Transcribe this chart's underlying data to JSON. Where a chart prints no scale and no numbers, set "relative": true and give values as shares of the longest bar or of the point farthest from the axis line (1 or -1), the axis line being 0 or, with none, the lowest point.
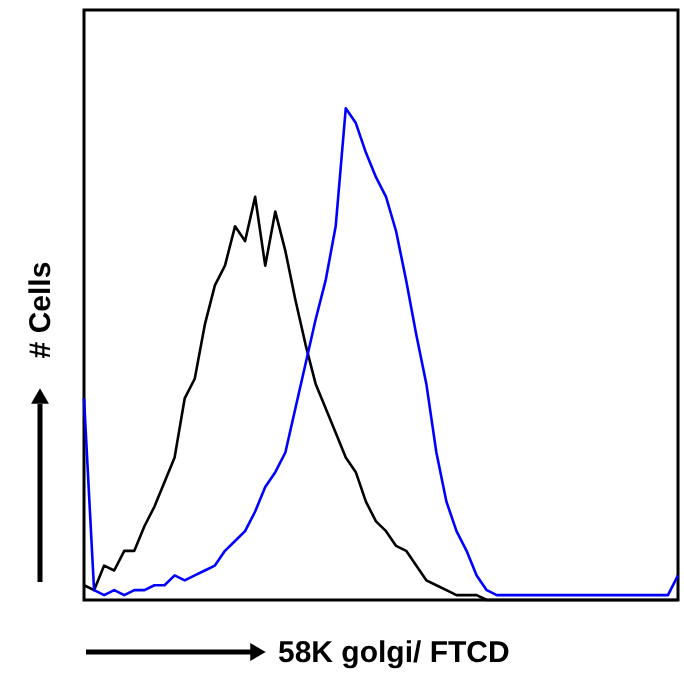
{
  "chart_data": {
    "type": "line",
    "relative": true,
    "xlabel": "58K golgi/ FTCD",
    "ylabel": "# Cells",
    "categories": [
      null,
      null,
      null,
      null,
      null,
      null,
      null,
      null,
      null,
      null,
      null,
      null,
      null,
      null,
      null,
      null,
      null,
      null,
      null,
      null,
      null,
      null,
      null,
      null,
      null,
      null,
      null,
      null,
      null,
      null,
      null,
      null,
      null,
      null,
      null,
      null,
      null,
      null,
      null,
      null,
      null,
      null,
      null,
      null,
      null,
      null,
      null,
      null,
      null,
      null,
      null,
      null,
      null,
      null,
      null,
      null,
      null,
      null,
      null,
      null
    ],
    "series": [
      {
        "color": "#000000",
        "values": [
          0.03,
          0.02,
          0.07,
          0.06,
          0.1,
          0.1,
          0.15,
          0.19,
          0.24,
          0.29,
          0.41,
          0.45,
          0.56,
          0.64,
          0.68,
          0.76,
          0.73,
          0.82,
          0.68,
          0.79,
          0.71,
          0.61,
          0.52,
          0.44,
          0.39,
          0.34,
          0.29,
          0.26,
          0.2,
          0.16,
          0.14,
          0.11,
          0.1,
          0.07,
          0.04,
          0.03,
          0.02,
          0.01,
          0.01,
          0.01,
          0,
          0,
          0,
          0,
          0,
          0,
          0,
          0,
          0,
          0,
          0,
          0,
          0,
          0,
          0,
          0,
          0,
          0,
          0,
          0
        ]
      },
      {
        "color": "#0000ff",
        "values": [
          0.41,
          0.02,
          0.01,
          0.02,
          0.01,
          0.02,
          0.02,
          0.03,
          0.03,
          0.05,
          0.04,
          0.05,
          0.06,
          0.07,
          0.1,
          0.12,
          0.14,
          0.18,
          0.23,
          0.26,
          0.3,
          0.39,
          0.48,
          0.57,
          0.65,
          0.76,
          1.0,
          0.97,
          0.91,
          0.86,
          0.82,
          0.75,
          0.65,
          0.54,
          0.44,
          0.3,
          0.2,
          0.14,
          0.1,
          0.05,
          0.02,
          0.01,
          0.01,
          0.01,
          0.01,
          0.01,
          0.01,
          0.01,
          0.01,
          0.01,
          0.01,
          0.01,
          0.01,
          0.01,
          0.01,
          0.01,
          0.01,
          0.01,
          0.01,
          0.05
        ]
      }
    ]
  }
}
